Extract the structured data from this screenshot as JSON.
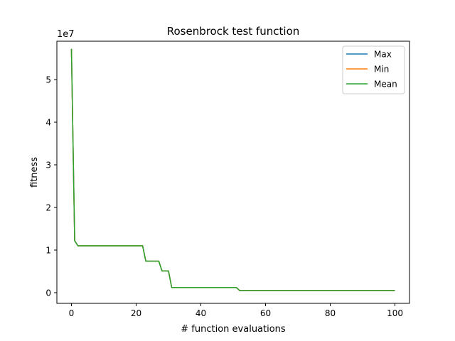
{
  "chart_data": {
    "type": "line",
    "title": "Rosenbrock test function",
    "xlabel": "# function evaluations",
    "ylabel": "fitness",
    "y_scale_label": "1e7",
    "xlim": [
      -4.5,
      104.5
    ],
    "ylim": [
      -0.25,
      5.9
    ],
    "y_unit": 10000000,
    "x_ticks": [
      0,
      20,
      40,
      60,
      80,
      100
    ],
    "y_ticks": [
      0,
      1,
      2,
      3,
      4,
      5
    ],
    "grid": false,
    "legend_placement": "top-right",
    "x": [
      0,
      1,
      2,
      22,
      23,
      27,
      28,
      30,
      31,
      51,
      52,
      100
    ],
    "series": [
      {
        "name": "Max",
        "color": "#1f77b4",
        "values": [
          5.72,
          1.22,
          1.1,
          1.1,
          0.74,
          0.74,
          0.51,
          0.51,
          0.12,
          0.12,
          0.05,
          0.05
        ]
      },
      {
        "name": "Min",
        "color": "#ff7f0e",
        "values": [
          5.72,
          1.22,
          1.1,
          1.1,
          0.74,
          0.74,
          0.51,
          0.51,
          0.12,
          0.12,
          0.05,
          0.05
        ]
      },
      {
        "name": "Mean",
        "color": "#2ca02c",
        "values": [
          5.72,
          1.22,
          1.1,
          1.1,
          0.74,
          0.74,
          0.51,
          0.51,
          0.12,
          0.12,
          0.05,
          0.05
        ]
      }
    ]
  }
}
